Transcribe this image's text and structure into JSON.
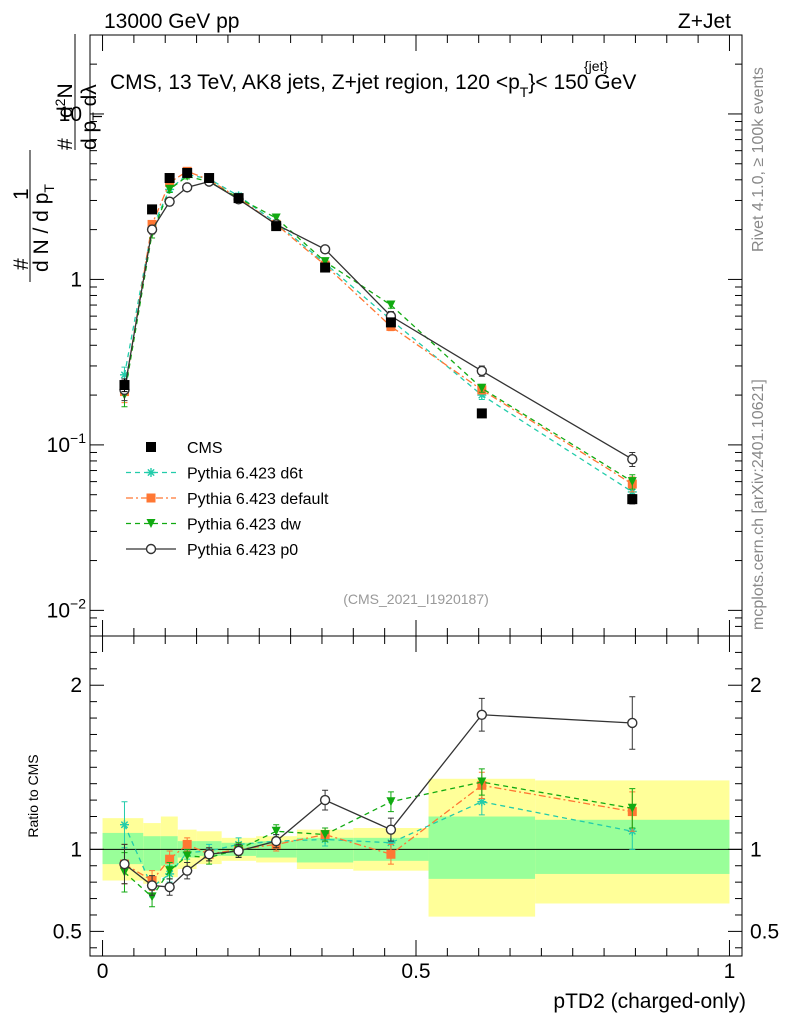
{
  "header": {
    "left": "13000 GeV pp",
    "right": "Z+Jet"
  },
  "plot_title": "CMS, 13 TeV, AK8 jets, Z+jet region, 120 <p",
  "plot_title_sup": "{jet}",
  "plot_title_sub": "T",
  "plot_title_tail": "}< 150 GeV",
  "side_label_top": "Rivet 4.1.0, ≥ 100k events",
  "side_label_bottom": "mcplots.cern.ch [arXiv:2401.10621]",
  "analysis_tag": "(CMS_2021_I1920187)",
  "ylabel_main": {
    "part1": "1",
    "part2": "d N / d p",
    "part2_sub": "T",
    "part3": "d",
    "part3_sup": "2",
    "part3_tail": "N",
    "part4": "d p",
    "part4_sub": "T",
    "part4_tail": " dλ",
    "hash": "#"
  },
  "ratio_ylabel": "Ratio to CMS",
  "xlabel": "pTD2 (charged-only)",
  "colors": {
    "cms": "#000000",
    "d6t": "#22ccaa",
    "default": "#ff7733",
    "dw": "#11aa11",
    "p0": "#333333",
    "band_inner": "#99ff99",
    "band_outer": "#ffff99"
  },
  "chart_data": {
    "type": "scatter",
    "x_range": [
      -0.02,
      1.02
    ],
    "main": {
      "yscale": "log",
      "ylim": [
        0.007,
        30
      ],
      "y_ticks": [
        {
          "value": 0.01,
          "label": "10",
          "exp": "−2"
        },
        {
          "value": 0.1,
          "label": "10",
          "exp": "−1"
        },
        {
          "value": 1,
          "label": "1",
          "exp": ""
        },
        {
          "value": 10,
          "label": "10",
          "exp": ""
        }
      ]
    },
    "ratio": {
      "yscale": "linear",
      "ylim": [
        0.35,
        2.3
      ],
      "y_ticks": [
        {
          "value": 0.5,
          "label": "0.5"
        },
        {
          "value": 1,
          "label": "1"
        },
        {
          "value": 2,
          "label": "2"
        }
      ]
    },
    "x_ticks": [
      {
        "value": 0,
        "label": "0"
      },
      {
        "value": 0.5,
        "label": "0.5"
      },
      {
        "value": 1,
        "label": "1"
      }
    ],
    "bins": [
      [
        0.0,
        0.065
      ],
      [
        0.065,
        0.093
      ],
      [
        0.093,
        0.12
      ],
      [
        0.12,
        0.15
      ],
      [
        0.15,
        0.19
      ],
      [
        0.19,
        0.245
      ],
      [
        0.245,
        0.31
      ],
      [
        0.31,
        0.4
      ],
      [
        0.4,
        0.52
      ],
      [
        0.52,
        0.69
      ],
      [
        0.69,
        1.0
      ]
    ],
    "band_inner": [
      [
        0.91,
        1.1
      ],
      [
        0.87,
        1.08
      ],
      [
        0.9,
        1.08
      ],
      [
        0.95,
        1.05
      ],
      [
        0.96,
        1.05
      ],
      [
        0.96,
        1.04
      ],
      [
        0.95,
        1.05
      ],
      [
        0.92,
        1.07
      ],
      [
        0.93,
        1.07
      ],
      [
        0.82,
        1.2
      ],
      [
        0.85,
        1.18
      ]
    ],
    "band_outer": [
      [
        0.81,
        1.19
      ],
      [
        0.79,
        1.16
      ],
      [
        0.83,
        1.2
      ],
      [
        0.88,
        1.12
      ],
      [
        0.91,
        1.11
      ],
      [
        0.93,
        1.07
      ],
      [
        0.92,
        1.08
      ],
      [
        0.88,
        1.12
      ],
      [
        0.87,
        1.13
      ],
      [
        0.59,
        1.43
      ],
      [
        0.67,
        1.42
      ]
    ],
    "series": [
      {
        "name": "CMS",
        "key": "cms",
        "marker": "square",
        "line": "none",
        "x": [
          0.035,
          0.079,
          0.107,
          0.135,
          0.17,
          0.217,
          0.277,
          0.355,
          0.46,
          0.605,
          0.845
        ],
        "y": [
          0.23,
          2.65,
          4.1,
          4.4,
          4.1,
          3.1,
          2.1,
          1.18,
          0.55,
          0.155,
          0.047
        ],
        "yerr": [
          0.02,
          0.08,
          0.1,
          0.1,
          0.1,
          0.08,
          0.06,
          0.04,
          0.02,
          0.008,
          0.003
        ]
      },
      {
        "name": "Pythia 6.423 d6t",
        "key": "d6t",
        "marker": "star",
        "line": "dash",
        "x": [
          0.035,
          0.079,
          0.107,
          0.135,
          0.17,
          0.217,
          0.277,
          0.355,
          0.46,
          0.605,
          0.845
        ],
        "y": [
          0.265,
          2.05,
          3.5,
          4.3,
          4.05,
          3.2,
          2.2,
          1.25,
          0.57,
          0.2,
          0.052
        ],
        "yerr": [
          0.03,
          0.12,
          0.15,
          0.15,
          0.15,
          0.12,
          0.08,
          0.05,
          0.03,
          0.012,
          0.005
        ],
        "ratio": [
          1.15,
          0.77,
          0.85,
          0.98,
          0.99,
          1.03,
          1.05,
          1.06,
          1.04,
          1.29,
          1.11
        ],
        "ratio_err": [
          0.14,
          0.06,
          0.05,
          0.04,
          0.04,
          0.04,
          0.04,
          0.04,
          0.06,
          0.08,
          0.11
        ]
      },
      {
        "name": "Pythia 6.423 default",
        "key": "default",
        "marker": "square",
        "line": "dashdot",
        "x": [
          0.035,
          0.079,
          0.107,
          0.135,
          0.17,
          0.217,
          0.277,
          0.355,
          0.46,
          0.605,
          0.845
        ],
        "y": [
          0.21,
          2.15,
          3.85,
          4.5,
          4.0,
          3.1,
          2.15,
          1.22,
          0.52,
          0.215,
          0.058
        ],
        "yerr": [
          0.03,
          0.12,
          0.15,
          0.15,
          0.15,
          0.12,
          0.08,
          0.05,
          0.03,
          0.012,
          0.006
        ],
        "ratio": [
          0.91,
          0.81,
          0.94,
          1.03,
          0.97,
          1.0,
          1.03,
          1.09,
          0.97,
          1.39,
          1.23
        ],
        "ratio_err": [
          0.12,
          0.06,
          0.05,
          0.04,
          0.04,
          0.04,
          0.04,
          0.04,
          0.06,
          0.08,
          0.12
        ]
      },
      {
        "name": "Pythia 6.423 dw",
        "key": "dw",
        "marker": "triangle-down",
        "line": "dash",
        "x": [
          0.035,
          0.079,
          0.107,
          0.135,
          0.17,
          0.217,
          0.277,
          0.355,
          0.46,
          0.605,
          0.845
        ],
        "y": [
          0.2,
          1.9,
          3.5,
          4.2,
          3.9,
          3.1,
          2.35,
          1.28,
          0.7,
          0.22,
          0.06
        ],
        "yerr": [
          0.03,
          0.12,
          0.15,
          0.15,
          0.15,
          0.12,
          0.08,
          0.05,
          0.03,
          0.012,
          0.006
        ],
        "ratio": [
          0.86,
          0.71,
          0.87,
          0.96,
          0.95,
          1.0,
          1.11,
          1.09,
          1.29,
          1.41,
          1.25
        ],
        "ratio_err": [
          0.12,
          0.06,
          0.05,
          0.04,
          0.04,
          0.04,
          0.04,
          0.04,
          0.06,
          0.08,
          0.12
        ]
      },
      {
        "name": "Pythia 6.423 p0",
        "key": "p0",
        "marker": "open-circle",
        "line": "solid",
        "x": [
          0.035,
          0.079,
          0.107,
          0.135,
          0.17,
          0.217,
          0.277,
          0.355,
          0.46,
          0.605,
          0.845
        ],
        "y": [
          0.215,
          2.0,
          2.95,
          3.6,
          3.9,
          3.05,
          2.15,
          1.52,
          0.6,
          0.28,
          0.082
        ],
        "yerr": [
          0.03,
          0.12,
          0.15,
          0.15,
          0.15,
          0.12,
          0.08,
          0.05,
          0.04,
          0.02,
          0.008
        ],
        "ratio": [
          0.91,
          0.78,
          0.77,
          0.87,
          0.97,
          0.99,
          1.05,
          1.3,
          1.12,
          1.82,
          1.77
        ],
        "ratio_err": [
          0.12,
          0.06,
          0.05,
          0.05,
          0.04,
          0.04,
          0.04,
          0.06,
          0.07,
          0.1,
          0.16
        ]
      }
    ]
  }
}
